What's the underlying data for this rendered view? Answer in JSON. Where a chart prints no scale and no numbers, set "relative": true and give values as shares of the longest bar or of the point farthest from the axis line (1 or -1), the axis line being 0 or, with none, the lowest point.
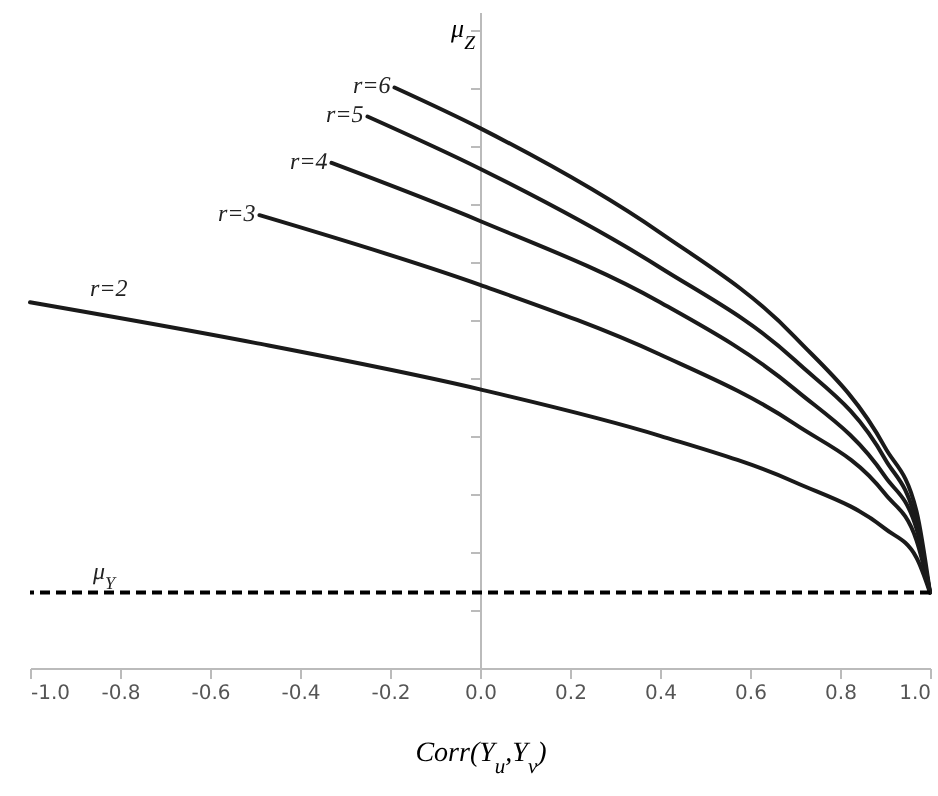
{
  "chart_data": {
    "type": "line",
    "relative": true,
    "xlabel": "Corr(Y$_{u}$,Y$_{v}$)",
    "ylabel": "μ$_{Z}$",
    "xlim": [
      -1,
      1
    ],
    "xticks": [
      {
        "value": -1,
        "label": "-1.0"
      },
      {
        "value": -0.8,
        "label": "-0.8"
      },
      {
        "value": -0.6,
        "label": "-0.6"
      },
      {
        "value": -0.4,
        "label": "-0.4"
      },
      {
        "value": -0.2,
        "label": "-0.2"
      },
      {
        "value": 0,
        "label": "0.0"
      },
      {
        "value": 0.2,
        "label": "0.2"
      },
      {
        "value": 0.4,
        "label": "0.4"
      },
      {
        "value": 0.6,
        "label": "0.6"
      },
      {
        "value": 0.8,
        "label": "0.8"
      },
      {
        "value": 1,
        "label": "1.0"
      }
    ],
    "marker": "none",
    "line_style": "solid",
    "series": [
      {
        "name": "r=2",
        "color": "#1a1a1a",
        "x": [
          -1,
          -0.5,
          0,
          0.4,
          0.7,
          0.9,
          0.97,
          1
        ],
        "values": [
          0.63,
          0.56,
          0.48,
          0.4,
          0.32,
          0.24,
          0.19,
          0.13
        ]
      },
      {
        "name": "r=3",
        "color": "#1a1a1a",
        "x": [
          -0.49,
          0,
          0.4,
          0.7,
          0.9,
          0.97,
          1
        ],
        "values": [
          0.78,
          0.66,
          0.54,
          0.42,
          0.3,
          0.22,
          0.13
        ]
      },
      {
        "name": "r=4",
        "color": "#1a1a1a",
        "x": [
          -0.33,
          0,
          0.4,
          0.7,
          0.9,
          0.97,
          1
        ],
        "values": [
          0.87,
          0.77,
          0.63,
          0.48,
          0.33,
          0.24,
          0.13
        ]
      },
      {
        "name": "r=5",
        "color": "#1a1a1a",
        "x": [
          -0.25,
          0,
          0.4,
          0.7,
          0.9,
          0.97,
          1
        ],
        "values": [
          0.95,
          0.86,
          0.69,
          0.53,
          0.36,
          0.25,
          0.13
        ]
      },
      {
        "name": "r=6",
        "color": "#1a1a1a",
        "x": [
          -0.19,
          0,
          0.4,
          0.7,
          0.9,
          0.97,
          1
        ],
        "values": [
          1,
          0.93,
          0.75,
          0.57,
          0.38,
          0.27,
          0.13
        ]
      }
    ],
    "ref_lines": [
      {
        "axis": "y",
        "value": 0.13,
        "label": "μ$_{Y}$",
        "color": "#000000",
        "line_style": "dashed"
      }
    ]
  }
}
